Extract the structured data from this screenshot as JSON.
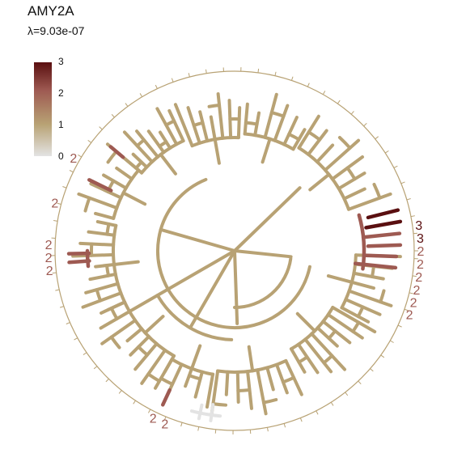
{
  "title": "AMY2A",
  "subtitle": "λ=9.03e-07",
  "chart_data": {
    "type": "phylogenetic-tree",
    "layout": "circular",
    "color_scale": {
      "min": 0,
      "max": 3,
      "ticks": [
        "3",
        "2",
        "1",
        "0"
      ],
      "colors": {
        "0": "#e3e3e3",
        "1": "#b8a274",
        "2": "#9e5a52",
        "3": "#5a0f10"
      },
      "legend_placement": "top-left"
    },
    "tip_labels": [
      "2",
      "2",
      "2",
      "2",
      "2",
      "2",
      "2",
      "3",
      "3",
      "2",
      "2",
      "2",
      "2",
      "2",
      "2"
    ],
    "branch_color": "#b8a274"
  }
}
